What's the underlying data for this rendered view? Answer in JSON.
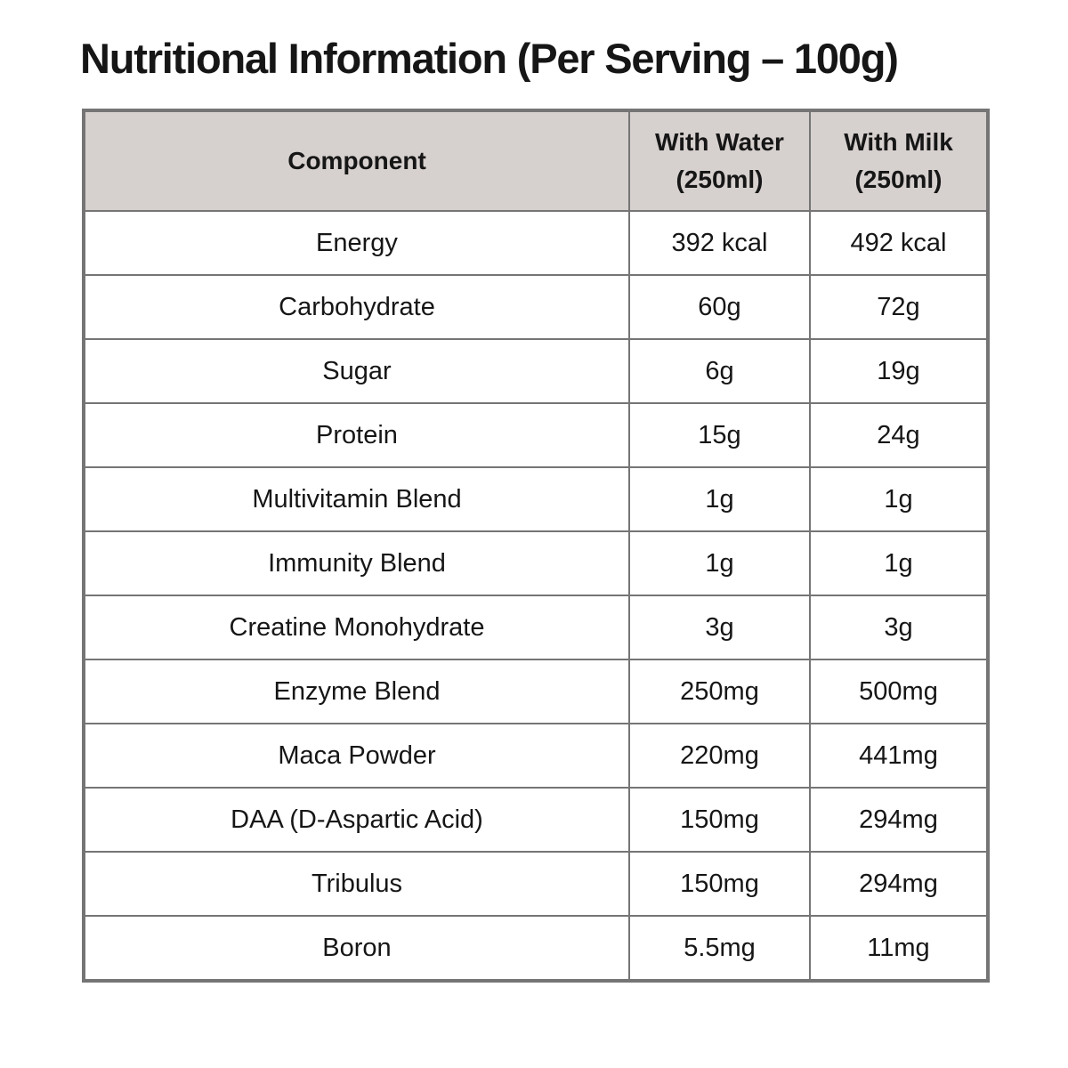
{
  "page": {
    "title": "Nutritional Information (Per Serving – 100g)"
  },
  "theme": {
    "header_bg": "#d6d0ce",
    "border_color": "#757575",
    "text_color": "#161616",
    "page_background": "#ffffff"
  },
  "table": {
    "columns": [
      {
        "label": "Component",
        "sub": ""
      },
      {
        "label": "With Water",
        "sub": "(250ml)"
      },
      {
        "label": "With Milk",
        "sub": "(250ml)"
      }
    ],
    "rows": [
      {
        "component": "Energy",
        "with_water": "392 kcal",
        "with_milk": "492 kcal"
      },
      {
        "component": "Carbohydrate",
        "with_water": "60g",
        "with_milk": "72g"
      },
      {
        "component": "Sugar",
        "with_water": "6g",
        "with_milk": "19g"
      },
      {
        "component": "Protein",
        "with_water": "15g",
        "with_milk": "24g"
      },
      {
        "component": "Multivitamin Blend",
        "with_water": "1g",
        "with_milk": "1g"
      },
      {
        "component": "Immunity Blend",
        "with_water": "1g",
        "with_milk": "1g"
      },
      {
        "component": "Creatine Monohydrate",
        "with_water": "3g",
        "with_milk": "3g"
      },
      {
        "component": "Enzyme Blend",
        "with_water": "250mg",
        "with_milk": "500mg"
      },
      {
        "component": "Maca Powder",
        "with_water": "220mg",
        "with_milk": "441mg"
      },
      {
        "component": "DAA (D-Aspartic Acid)",
        "with_water": "150mg",
        "with_milk": "294mg"
      },
      {
        "component": "Tribulus",
        "with_water": "150mg",
        "with_milk": "294mg"
      },
      {
        "component": "Boron",
        "with_water": "5.5mg",
        "with_milk": "11mg"
      }
    ]
  }
}
